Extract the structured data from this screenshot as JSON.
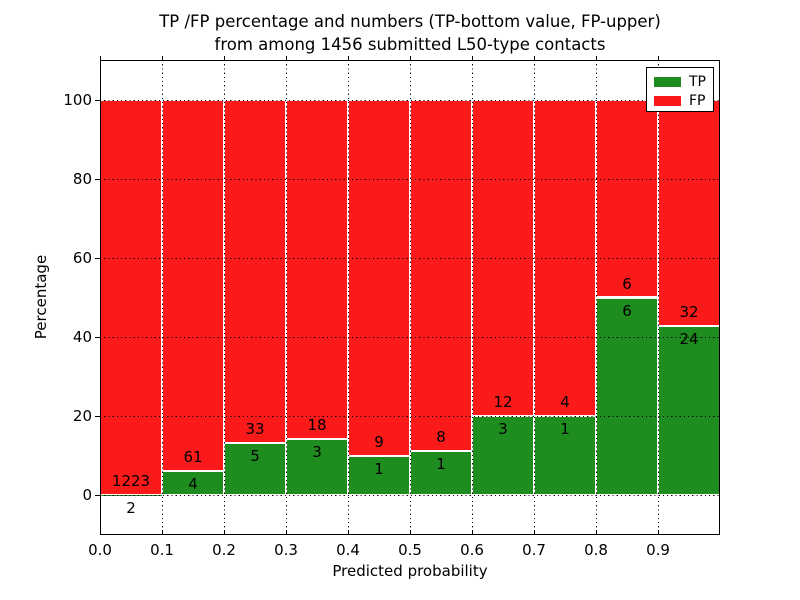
{
  "figure": {
    "title_line1": "TP /FP percentage and numbers (TP-bottom value, FP-upper)",
    "title_line2": "from among 1456 submitted L50-type contacts"
  },
  "chart_data": {
    "type": "bar",
    "stacked": true,
    "normalized_to_percent": true,
    "title": "TP /FP percentage and numbers (TP-bottom value, FP-upper) from among 1456 submitted L50-type contacts",
    "xlabel": "Predicted probability",
    "ylabel": "Percentage",
    "total_contacts": 1456,
    "bin_starts": [
      0.0,
      0.1,
      0.2,
      0.3,
      0.4,
      0.5,
      0.6,
      0.7,
      0.8,
      0.9
    ],
    "bin_width": 0.1,
    "series": [
      {
        "name": "TP",
        "color": "#1E8C1E",
        "counts": [
          2,
          4,
          5,
          3,
          1,
          1,
          3,
          1,
          6,
          24
        ]
      },
      {
        "name": "FP",
        "color": "#FA1A1A",
        "counts": [
          1223,
          61,
          33,
          18,
          9,
          8,
          12,
          4,
          6,
          32
        ]
      }
    ],
    "tp_percent_of_bin": [
      0.163,
      6.154,
      13.158,
      14.286,
      10.0,
      11.111,
      20.0,
      20.0,
      50.0,
      42.857
    ],
    "bar_top_percent": 100,
    "xlim": [
      0.0,
      1.0
    ],
    "ylim": [
      -10,
      110
    ],
    "xtick_labels": [
      "0.0",
      "0.1",
      "0.2",
      "0.3",
      "0.4",
      "0.5",
      "0.6",
      "0.7",
      "0.8",
      "0.9"
    ],
    "xtick_values": [
      0.0,
      0.1,
      0.2,
      0.3,
      0.4,
      0.5,
      0.6,
      0.7,
      0.8,
      0.9
    ],
    "ytick_labels": [
      "0",
      "20",
      "40",
      "60",
      "80",
      "100"
    ],
    "ytick_values": [
      0,
      20,
      40,
      60,
      80,
      100
    ],
    "grid": true,
    "grid_style": "dotted",
    "bar_edge_color": "#FFFFFF",
    "legend": {
      "position": "upper right",
      "entries": [
        {
          "label": "TP",
          "color": "#1E8C1E"
        },
        {
          "label": "FP",
          "color": "#FA1A1A"
        }
      ]
    }
  }
}
